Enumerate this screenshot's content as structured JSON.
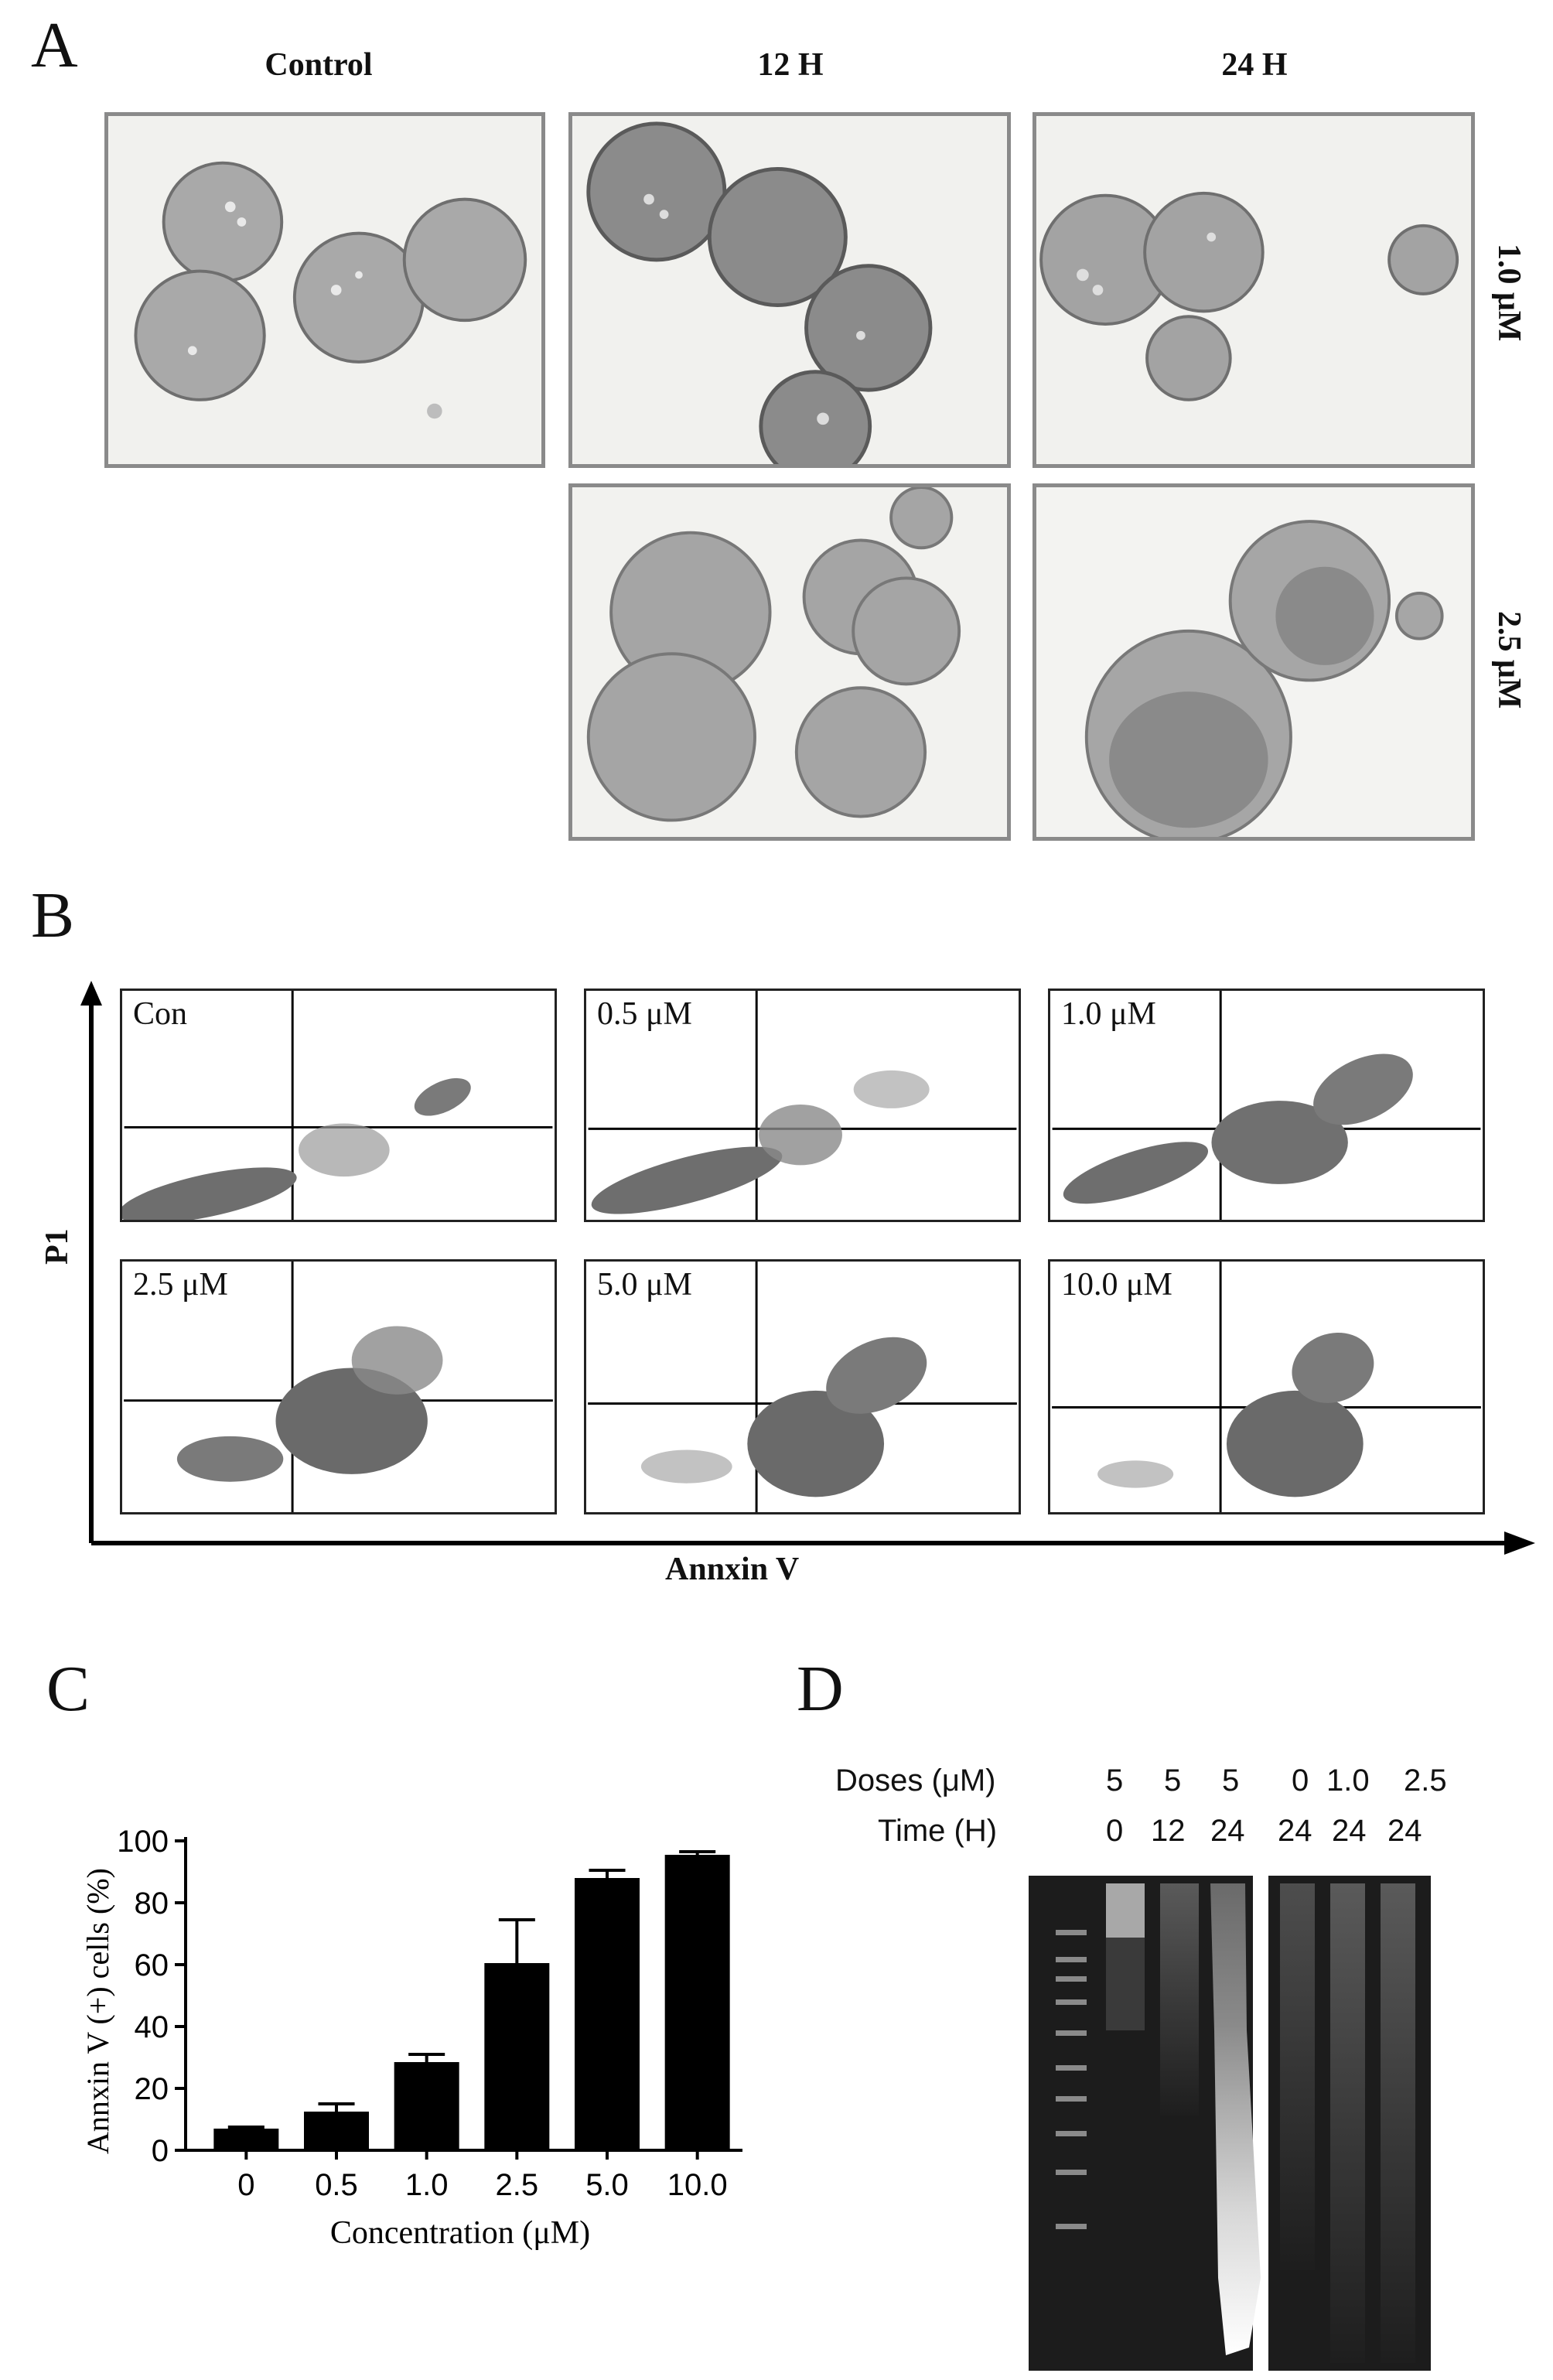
{
  "panels": {
    "A": {
      "letter": "A",
      "columns": [
        "Control",
        "12 H",
        "24 H"
      ],
      "rows": [
        "1.0 μM",
        "2.5 μM"
      ]
    },
    "B": {
      "letter": "B",
      "y_axis": "P1",
      "x_axis": "Annxin V",
      "plots": [
        "Con",
        "0.5 μM",
        "1.0 μM",
        "2.5 μM",
        "5.0 μM",
        "10.0 μM"
      ]
    },
    "C": {
      "letter": "C"
    },
    "D": {
      "letter": "D",
      "doses_label": "Doses (μM)",
      "time_label": "Time (H)",
      "doses": [
        "5",
        "5",
        "5",
        "0",
        "1.0",
        "2.5"
      ],
      "times": [
        "0",
        "12",
        "24",
        "24",
        "24",
        "24"
      ]
    }
  },
  "chart_data": {
    "type": "bar",
    "categories": [
      "0",
      "0.5",
      "1.0",
      "2.5",
      "5.0",
      "10.0"
    ],
    "values": [
      7,
      12.5,
      28.5,
      60.5,
      88,
      95.5
    ],
    "errors": [
      0.5,
      2.5,
      2.5,
      14,
      2.5,
      1
    ],
    "xlabel": "Concentration (μM)",
    "ylabel": "Annxin V (+) cells (%)",
    "ylim": [
      0,
      100
    ],
    "yticks": [
      "0",
      "20",
      "40",
      "60",
      "80",
      "100"
    ],
    "bar_color": "#000000"
  }
}
